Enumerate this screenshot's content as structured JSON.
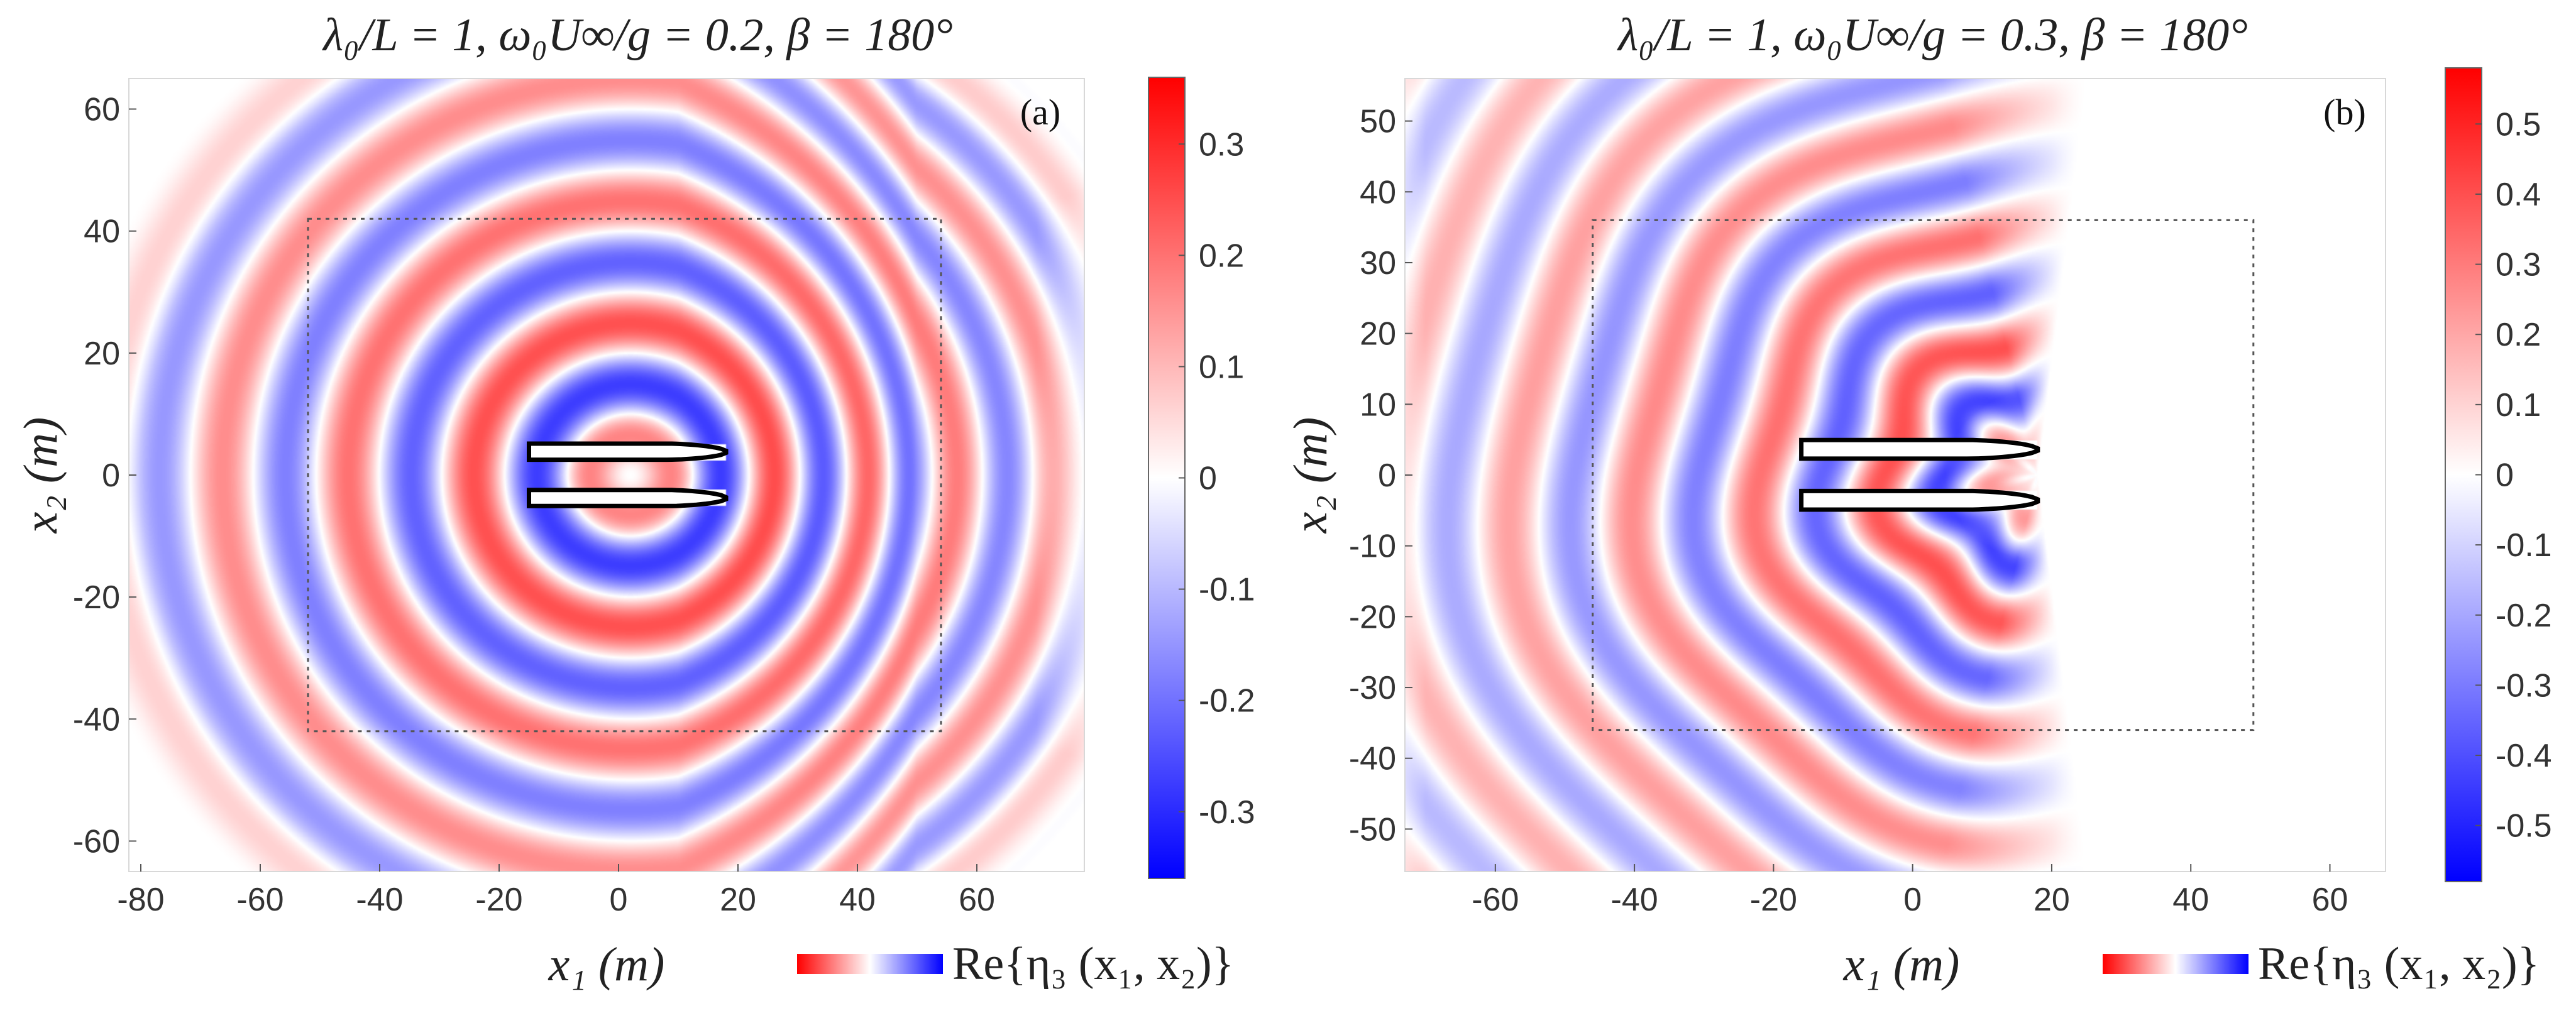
{
  "chart_data": [
    {
      "type": "heatmap",
      "panel_label": "(a)",
      "title": "λ₀/L = 1,   ω₀U∞/g = 0.2,   β = 180°",
      "xlabel": "x₁ (m)",
      "ylabel": "x₂ (m)",
      "xlim": [
        -82,
        78
      ],
      "ylim": [
        -65,
        65
      ],
      "xticks": [
        "-80",
        "-60",
        "-40",
        "-20",
        "0",
        "20",
        "40",
        "60"
      ],
      "yticks": [
        "60",
        "40",
        "20",
        "0",
        "-20",
        "-40",
        "-60"
      ],
      "xtick_values": [
        -80,
        -60,
        -40,
        -20,
        0,
        20,
        40,
        60
      ],
      "ytick_values": [
        60,
        40,
        20,
        0,
        -20,
        -40,
        -60
      ],
      "colorbar": {
        "min": -0.36,
        "max": 0.36,
        "ticks": [
          "0.3",
          "0.2",
          "0.1",
          "0",
          "-0.1",
          "-0.2",
          "-0.3"
        ],
        "tick_values": [
          0.3,
          0.2,
          0.1,
          0,
          -0.1,
          -0.2,
          -0.3
        ]
      },
      "dotted_box": {
        "x": [
          -52,
          54
        ],
        "y": [
          -42,
          42
        ]
      },
      "hull_x": [
        -15,
        18
      ],
      "hull_centers_y": [
        3.8,
        -3.8
      ],
      "pattern": {
        "wavelength": 20,
        "decay": 60,
        "spread": 1.1
      },
      "legend": "Re{η₃ (x₁, x₂)}"
    },
    {
      "type": "heatmap",
      "panel_label": "(b)",
      "title": "λ₀/L = 1,   ω₀U∞/g = 0.3,   β = 180°",
      "xlabel": "x₁ (m)",
      "ylabel": "x₂ (m)",
      "xlim": [
        -73,
        68
      ],
      "ylim": [
        -56,
        56
      ],
      "xticks": [
        "-60",
        "-40",
        "-20",
        "0",
        "20",
        "40",
        "60"
      ],
      "yticks": [
        "50",
        "40",
        "30",
        "20",
        "10",
        "0",
        "-10",
        "-20",
        "-30",
        "-40",
        "-50"
      ],
      "xtick_values": [
        -60,
        -40,
        -20,
        0,
        20,
        40,
        60
      ],
      "ytick_values": [
        50,
        40,
        30,
        20,
        10,
        0,
        -10,
        -20,
        -30,
        -40,
        -50
      ],
      "colorbar": {
        "min": -0.58,
        "max": 0.58,
        "ticks": [
          "0.5",
          "0.4",
          "0.3",
          "0.2",
          "0.1",
          "0",
          "-0.1",
          "-0.2",
          "-0.3",
          "-0.4",
          "-0.5"
        ],
        "tick_values": [
          0.5,
          0.4,
          0.3,
          0.2,
          0.1,
          0,
          -0.1,
          -0.2,
          -0.3,
          -0.4,
          -0.5
        ]
      },
      "dotted_box": {
        "x": [
          -46,
          49
        ],
        "y": [
          -36,
          36
        ]
      },
      "hull_x": [
        -16,
        18
      ],
      "hull_centers_y": [
        3.6,
        -3.6
      ],
      "pattern": {
        "wavelength": 16,
        "decay": 45,
        "spread": 0.75
      },
      "legend": "Re{η₃ (x₁, x₂)}"
    }
  ],
  "colors": {
    "positive": "#ff0000",
    "neutral": "#ffffff",
    "negative": "#0000ff",
    "hull_fill": "#ffffff",
    "hull_stroke": "#000000",
    "axis": "#444444",
    "box": "#555555"
  }
}
